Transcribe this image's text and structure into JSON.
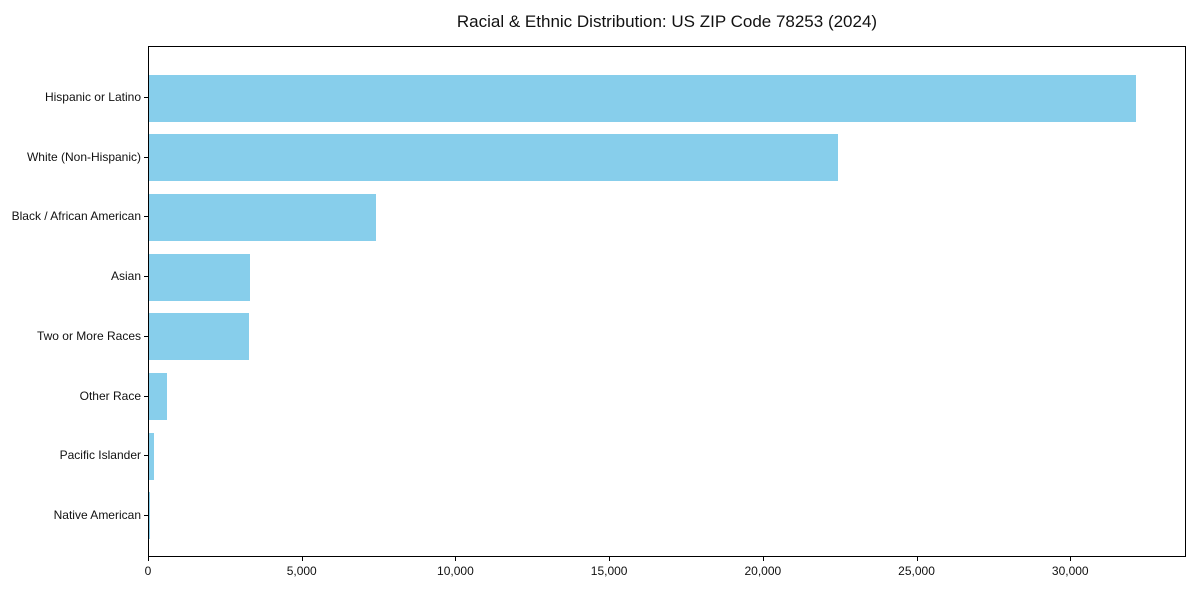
{
  "figure": {
    "background": "#ffffff"
  },
  "chart_data": {
    "type": "bar",
    "orientation": "horizontal",
    "title": "Racial & Ethnic Distribution: US ZIP Code 78253 (2024)",
    "categories": [
      "Hispanic or Latino",
      "White (Non-Hispanic)",
      "Black / African American",
      "Asian",
      "Two or More Races",
      "Other Race",
      "Pacific Islander",
      "Native American"
    ],
    "values": [
      32100,
      22400,
      7400,
      3300,
      3250,
      590,
      150,
      40
    ],
    "xlabel": "",
    "ylabel": "",
    "xlim": [
      0,
      33700
    ],
    "xticks": [
      {
        "value": 0,
        "label": "0"
      },
      {
        "value": 5000,
        "label": "5,000"
      },
      {
        "value": 10000,
        "label": "10,000"
      },
      {
        "value": 15000,
        "label": "15,000"
      },
      {
        "value": 20000,
        "label": "20,000"
      },
      {
        "value": 25000,
        "label": "25,000"
      },
      {
        "value": 30000,
        "label": "30,000"
      }
    ],
    "grid": false,
    "legend": "none",
    "bar_color": "#87CEEB",
    "axis_color": "#000000",
    "text_color": "#111111"
  }
}
